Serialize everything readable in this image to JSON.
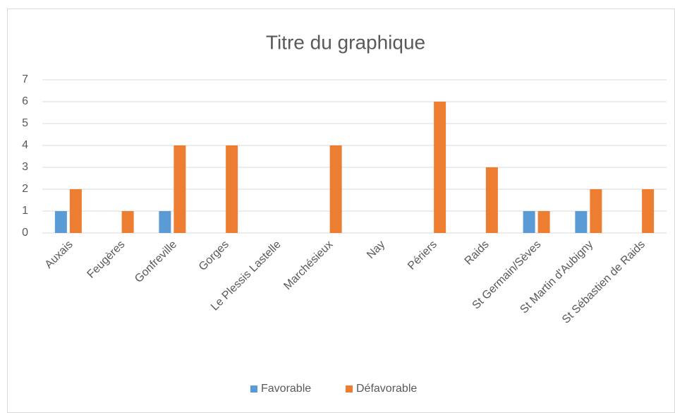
{
  "chart_data": {
    "type": "bar",
    "title": "Titre du graphique",
    "categories": [
      "Auxais",
      "Feugères",
      "Gonfreville",
      "Gorges",
      "Le Plessis Lastelle",
      "Marchésieux",
      "Nay",
      "Périers",
      "Raids",
      "St Germain/Sèves",
      "St Martin d'Aubigny",
      "St Sébastien de Raids"
    ],
    "series": [
      {
        "name": "Favorable",
        "color": "#5b9bd5",
        "values": [
          1,
          0,
          1,
          0,
          0,
          0,
          0,
          0,
          0,
          1,
          1,
          0
        ]
      },
      {
        "name": "Défavorable",
        "color": "#ed7d31",
        "values": [
          2,
          1,
          4,
          4,
          0,
          4,
          0,
          6,
          3,
          1,
          2,
          2
        ]
      }
    ],
    "ylim": [
      0,
      7
    ],
    "yticks": [
      0,
      1,
      2,
      3,
      4,
      5,
      6,
      7
    ],
    "grid": true,
    "legend": "bottom"
  }
}
